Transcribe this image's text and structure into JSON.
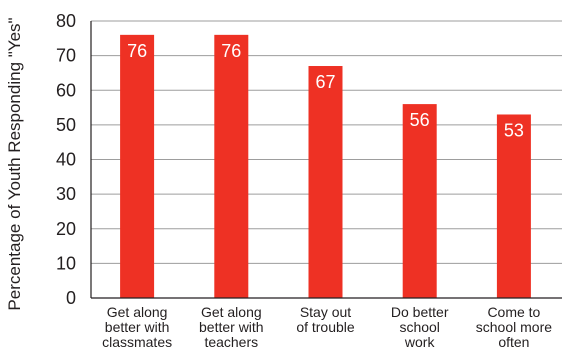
{
  "chart_data": {
    "type": "bar",
    "ylabel": "Percentage of Youth Responding \"Yes\"",
    "xlabel": "",
    "ylim": [
      0,
      80
    ],
    "yticks": [
      0,
      10,
      20,
      30,
      40,
      50,
      60,
      70,
      80
    ],
    "grid": "horizontal",
    "categories": [
      [
        "Get along",
        "better with",
        "classmates"
      ],
      [
        "Get along",
        "better with",
        "teachers"
      ],
      [
        "Stay out",
        "of trouble"
      ],
      [
        "Do better",
        "school",
        "work"
      ],
      [
        "Come to",
        "school more",
        "often"
      ]
    ],
    "values": [
      76,
      76,
      67,
      56,
      53
    ],
    "data_labels": [
      "76",
      "76",
      "67",
      "56",
      "53"
    ],
    "colors": {
      "bar": "#ee3124",
      "grid": "#9d9d9d",
      "axis": "#231f20",
      "text": "#231f20",
      "data_label": "#ffffff"
    }
  }
}
